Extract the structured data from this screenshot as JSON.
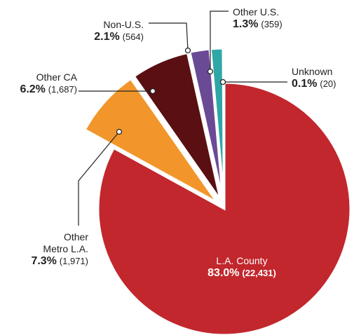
{
  "chart_data": {
    "type": "pie",
    "categories": [
      "L.A. County",
      "Other Metro L.A.",
      "Other CA",
      "Non-U.S.",
      "Other U.S.",
      "Unknown"
    ],
    "values": [
      83.0,
      7.3,
      6.2,
      2.1,
      1.3,
      0.1
    ],
    "value_labels": [
      "83.0%",
      "7.3%",
      "6.2%",
      "2.1%",
      "1.3%",
      "0.1%"
    ],
    "counts": [
      22431,
      1971,
      1687,
      564,
      359,
      20
    ],
    "count_labels": [
      "(22,431)",
      "(1,971)",
      "(1,687)",
      "(564)",
      "(359)",
      "(20)"
    ],
    "colors": [
      "#c1272d",
      "#f2962b",
      "#5a1012",
      "#6b4a95",
      "#2fa7a6",
      "#a9c63c"
    ]
  }
}
